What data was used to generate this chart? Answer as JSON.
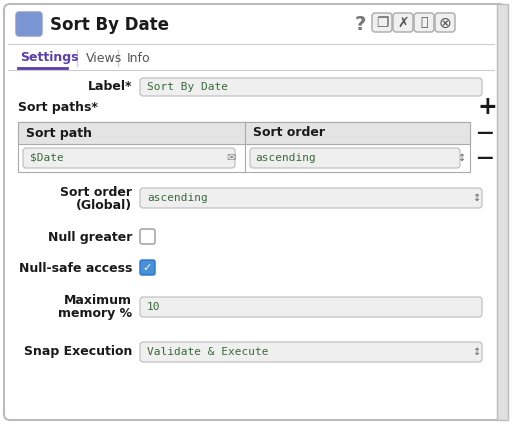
{
  "title": "Sort By Date",
  "title_icon_color": "#7b96d4",
  "bg_color": "#ffffff",
  "border_color": "#cccccc",
  "tab_active": "Settings",
  "tabs": [
    "Settings",
    "Views",
    "Info"
  ],
  "tab_active_color": "#5a3eaa",
  "label_field": "Sort By Date",
  "sort_path_header": "Sort path",
  "sort_order_header": "Sort order",
  "sort_path_value": "$Date",
  "sort_order_value": "ascending",
  "sort_order_global_value": "ascending",
  "null_greater_checked": false,
  "null_safe_checked": true,
  "max_memory": "10",
  "snap_execution": "Validate & Execute",
  "field_bg": "#efefef",
  "field_border": "#bbbbbb",
  "text_color": "#1a1a1a",
  "label_color": "#1a1a1a",
  "header_bg": "#e4e4e4",
  "table_border": "#aaaaaa",
  "checkbox_checked_color": "#4a90d9",
  "checkbox_border": "#999999",
  "icon_color": "#555555",
  "green_text": "#3a6a3a",
  "scrollbar_bg": "#e0e0e0"
}
